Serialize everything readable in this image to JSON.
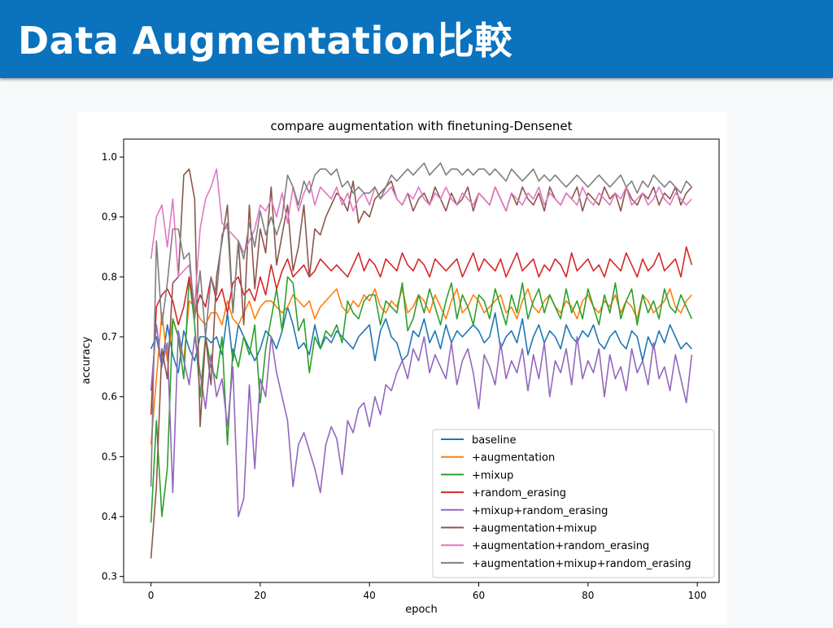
{
  "slide": {
    "title": "Data Augmentation比較"
  },
  "chart_data": {
    "type": "line",
    "title": "compare augmentation with finetuning-Densenet",
    "xlabel": "epoch",
    "ylabel": "accuracy",
    "xlim": [
      -5,
      104
    ],
    "ylim": [
      0.29,
      1.03
    ],
    "xticks": [
      0,
      20,
      40,
      60,
      80,
      100
    ],
    "xtick_labels": [
      "0",
      "20",
      "40",
      "60",
      "80",
      "100"
    ],
    "yticks": [
      0.3,
      0.4,
      0.5,
      0.6,
      0.7,
      0.8,
      0.9,
      1.0
    ],
    "ytick_labels": [
      "0.3",
      "0.4",
      "0.5",
      "0.6",
      "0.7",
      "0.8",
      "0.9",
      "1.0"
    ],
    "grid": false,
    "legend_position": "lower-right",
    "x": [
      0,
      1,
      2,
      3,
      4,
      5,
      6,
      7,
      8,
      9,
      10,
      11,
      12,
      13,
      14,
      15,
      16,
      17,
      18,
      19,
      20,
      21,
      22,
      23,
      24,
      25,
      26,
      27,
      28,
      29,
      30,
      31,
      32,
      33,
      34,
      35,
      36,
      37,
      38,
      39,
      40,
      41,
      42,
      43,
      44,
      45,
      46,
      47,
      48,
      49,
      50,
      51,
      52,
      53,
      54,
      55,
      56,
      57,
      58,
      59,
      60,
      61,
      62,
      63,
      64,
      65,
      66,
      67,
      68,
      69,
      70,
      71,
      72,
      73,
      74,
      75,
      76,
      77,
      78,
      79,
      80,
      81,
      82,
      83,
      84,
      85,
      86,
      87,
      88,
      89,
      90,
      91,
      92,
      93,
      94,
      95,
      96,
      97,
      98,
      99
    ],
    "series": [
      {
        "name": "baseline",
        "color": "#1f77b4",
        "values": [
          0.68,
          0.7,
          0.65,
          0.72,
          0.67,
          0.64,
          0.71,
          0.68,
          0.66,
          0.7,
          0.7,
          0.69,
          0.7,
          0.67,
          0.74,
          0.66,
          0.72,
          0.7,
          0.68,
          0.66,
          0.68,
          0.71,
          0.7,
          0.68,
          0.71,
          0.75,
          0.72,
          0.68,
          0.69,
          0.67,
          0.72,
          0.68,
          0.7,
          0.69,
          0.71,
          0.7,
          0.69,
          0.68,
          0.7,
          0.71,
          0.72,
          0.66,
          0.71,
          0.73,
          0.7,
          0.69,
          0.66,
          0.67,
          0.71,
          0.7,
          0.73,
          0.69,
          0.71,
          0.68,
          0.72,
          0.69,
          0.71,
          0.7,
          0.71,
          0.72,
          0.71,
          0.69,
          0.7,
          0.74,
          0.68,
          0.7,
          0.71,
          0.69,
          0.73,
          0.67,
          0.7,
          0.72,
          0.69,
          0.71,
          0.7,
          0.68,
          0.72,
          0.7,
          0.69,
          0.71,
          0.7,
          0.72,
          0.69,
          0.68,
          0.7,
          0.71,
          0.69,
          0.68,
          0.71,
          0.7,
          0.66,
          0.7,
          0.68,
          0.71,
          0.69,
          0.72,
          0.7,
          0.68,
          0.69,
          0.68
        ]
      },
      {
        "name": "+augmentation",
        "color": "#ff7f0e",
        "values": [
          0.52,
          0.63,
          0.74,
          0.66,
          0.73,
          0.7,
          0.66,
          0.76,
          0.75,
          0.73,
          0.72,
          0.74,
          0.74,
          0.72,
          0.76,
          0.73,
          0.72,
          0.74,
          0.76,
          0.73,
          0.75,
          0.76,
          0.76,
          0.75,
          0.74,
          0.75,
          0.77,
          0.76,
          0.75,
          0.76,
          0.73,
          0.75,
          0.76,
          0.77,
          0.78,
          0.75,
          0.74,
          0.76,
          0.75,
          0.77,
          0.76,
          0.78,
          0.75,
          0.74,
          0.76,
          0.75,
          0.78,
          0.74,
          0.75,
          0.77,
          0.76,
          0.74,
          0.77,
          0.75,
          0.73,
          0.76,
          0.78,
          0.74,
          0.75,
          0.77,
          0.76,
          0.74,
          0.75,
          0.76,
          0.77,
          0.74,
          0.75,
          0.73,
          0.76,
          0.78,
          0.75,
          0.74,
          0.76,
          0.77,
          0.75,
          0.74,
          0.76,
          0.75,
          0.73,
          0.76,
          0.77,
          0.75,
          0.74,
          0.76,
          0.75,
          0.77,
          0.74,
          0.76,
          0.75,
          0.73,
          0.77,
          0.76,
          0.74,
          0.75,
          0.76,
          0.78,
          0.75,
          0.74,
          0.76,
          0.77
        ]
      },
      {
        "name": "+mixup",
        "color": "#2ca02c",
        "values": [
          0.39,
          0.56,
          0.4,
          0.48,
          0.73,
          0.7,
          0.63,
          0.8,
          0.72,
          0.6,
          0.7,
          0.65,
          0.63,
          0.7,
          0.52,
          0.68,
          0.65,
          0.7,
          0.67,
          0.72,
          0.59,
          0.68,
          0.73,
          0.78,
          0.71,
          0.8,
          0.79,
          0.71,
          0.73,
          0.64,
          0.7,
          0.68,
          0.71,
          0.7,
          0.72,
          0.69,
          0.76,
          0.74,
          0.73,
          0.76,
          0.77,
          0.77,
          0.72,
          0.76,
          0.75,
          0.74,
          0.79,
          0.71,
          0.73,
          0.77,
          0.74,
          0.78,
          0.75,
          0.72,
          0.76,
          0.79,
          0.73,
          0.77,
          0.75,
          0.72,
          0.77,
          0.76,
          0.73,
          0.78,
          0.75,
          0.72,
          0.77,
          0.74,
          0.79,
          0.73,
          0.76,
          0.78,
          0.74,
          0.77,
          0.75,
          0.73,
          0.78,
          0.74,
          0.76,
          0.73,
          0.78,
          0.75,
          0.72,
          0.77,
          0.74,
          0.79,
          0.73,
          0.76,
          0.78,
          0.72,
          0.77,
          0.74,
          0.76,
          0.73,
          0.78,
          0.75,
          0.74,
          0.77,
          0.75,
          0.73
        ]
      },
      {
        "name": "+random_erasing",
        "color": "#d62728",
        "values": [
          0.57,
          0.75,
          0.77,
          0.78,
          0.76,
          0.72,
          0.75,
          0.8,
          0.74,
          0.77,
          0.75,
          0.8,
          0.76,
          0.78,
          0.74,
          0.79,
          0.8,
          0.77,
          0.78,
          0.76,
          0.8,
          0.77,
          0.82,
          0.78,
          0.81,
          0.83,
          0.8,
          0.81,
          0.82,
          0.8,
          0.81,
          0.83,
          0.82,
          0.81,
          0.82,
          0.81,
          0.8,
          0.82,
          0.84,
          0.81,
          0.83,
          0.82,
          0.8,
          0.83,
          0.82,
          0.81,
          0.84,
          0.82,
          0.81,
          0.83,
          0.82,
          0.8,
          0.83,
          0.82,
          0.81,
          0.82,
          0.83,
          0.8,
          0.82,
          0.84,
          0.81,
          0.83,
          0.82,
          0.81,
          0.83,
          0.8,
          0.82,
          0.84,
          0.81,
          0.82,
          0.83,
          0.8,
          0.82,
          0.81,
          0.83,
          0.82,
          0.8,
          0.84,
          0.81,
          0.82,
          0.83,
          0.81,
          0.82,
          0.8,
          0.83,
          0.82,
          0.81,
          0.84,
          0.82,
          0.8,
          0.83,
          0.81,
          0.82,
          0.84,
          0.81,
          0.82,
          0.83,
          0.8,
          0.85,
          0.82
        ]
      },
      {
        "name": "+mixup+random_erasing",
        "color": "#9467bd",
        "values": [
          0.61,
          0.72,
          0.65,
          0.69,
          0.44,
          0.71,
          0.66,
          0.62,
          0.7,
          0.64,
          0.58,
          0.67,
          0.6,
          0.63,
          0.55,
          0.65,
          0.4,
          0.43,
          0.62,
          0.48,
          0.63,
          0.6,
          0.7,
          0.64,
          0.6,
          0.56,
          0.45,
          0.52,
          0.54,
          0.51,
          0.48,
          0.44,
          0.52,
          0.55,
          0.53,
          0.47,
          0.56,
          0.54,
          0.58,
          0.59,
          0.55,
          0.6,
          0.57,
          0.62,
          0.61,
          0.64,
          0.66,
          0.63,
          0.68,
          0.66,
          0.7,
          0.64,
          0.67,
          0.65,
          0.63,
          0.69,
          0.62,
          0.66,
          0.68,
          0.64,
          0.58,
          0.67,
          0.65,
          0.62,
          0.69,
          0.63,
          0.66,
          0.64,
          0.68,
          0.61,
          0.67,
          0.63,
          0.69,
          0.6,
          0.66,
          0.64,
          0.68,
          0.62,
          0.7,
          0.63,
          0.66,
          0.64,
          0.68,
          0.6,
          0.67,
          0.63,
          0.65,
          0.61,
          0.68,
          0.64,
          0.66,
          0.62,
          0.69,
          0.63,
          0.65,
          0.61,
          0.67,
          0.63,
          0.59,
          0.67
        ]
      },
      {
        "name": "+augmentation+mixup",
        "color": "#8c564b",
        "values": [
          0.33,
          0.45,
          0.68,
          0.63,
          0.79,
          0.8,
          0.97,
          0.98,
          0.93,
          0.55,
          0.7,
          0.62,
          0.8,
          0.86,
          0.92,
          0.74,
          0.86,
          0.72,
          0.92,
          0.78,
          0.88,
          0.84,
          0.95,
          0.82,
          0.87,
          0.92,
          0.81,
          0.85,
          0.92,
          0.8,
          0.88,
          0.87,
          0.9,
          0.92,
          0.94,
          0.93,
          0.91,
          0.96,
          0.89,
          0.91,
          0.9,
          0.93,
          0.94,
          0.95,
          0.96,
          0.93,
          0.92,
          0.94,
          0.91,
          0.93,
          0.94,
          0.92,
          0.95,
          0.93,
          0.91,
          0.94,
          0.92,
          0.93,
          0.95,
          0.91,
          0.94,
          0.93,
          0.92,
          0.95,
          0.93,
          0.91,
          0.94,
          0.92,
          0.95,
          0.93,
          0.92,
          0.94,
          0.91,
          0.95,
          0.93,
          0.92,
          0.94,
          0.93,
          0.95,
          0.91,
          0.94,
          0.93,
          0.92,
          0.95,
          0.93,
          0.94,
          0.91,
          0.95,
          0.93,
          0.92,
          0.94,
          0.93,
          0.95,
          0.92,
          0.94,
          0.93,
          0.95,
          0.92,
          0.94,
          0.95
        ]
      },
      {
        "name": "+augmentation+random_erasing",
        "color": "#e377c2",
        "values": [
          0.83,
          0.9,
          0.92,
          0.85,
          0.93,
          0.8,
          0.81,
          0.82,
          0.75,
          0.88,
          0.93,
          0.95,
          0.98,
          0.89,
          0.88,
          0.87,
          0.86,
          0.84,
          0.86,
          0.88,
          0.92,
          0.91,
          0.93,
          0.9,
          0.94,
          0.89,
          0.95,
          0.91,
          0.94,
          0.96,
          0.92,
          0.95,
          0.94,
          0.93,
          0.95,
          0.92,
          0.94,
          0.91,
          0.93,
          0.94,
          0.92,
          0.95,
          0.93,
          0.94,
          0.95,
          0.93,
          0.92,
          0.94,
          0.93,
          0.95,
          0.93,
          0.92,
          0.94,
          0.93,
          0.95,
          0.93,
          0.92,
          0.94,
          0.93,
          0.92,
          0.94,
          0.93,
          0.92,
          0.95,
          0.93,
          0.91,
          0.94,
          0.93,
          0.92,
          0.94,
          0.93,
          0.95,
          0.92,
          0.94,
          0.93,
          0.92,
          0.94,
          0.93,
          0.92,
          0.95,
          0.93,
          0.92,
          0.94,
          0.93,
          0.92,
          0.94,
          0.93,
          0.95,
          0.92,
          0.93,
          0.94,
          0.92,
          0.93,
          0.95,
          0.93,
          0.92,
          0.94,
          0.93,
          0.92,
          0.93
        ]
      },
      {
        "name": "+augmentation+mixup+random_erasing",
        "color": "#7f7f7f",
        "values": [
          0.45,
          0.86,
          0.72,
          0.79,
          0.88,
          0.88,
          0.83,
          0.84,
          0.73,
          0.81,
          0.7,
          0.8,
          0.77,
          0.87,
          0.89,
          0.74,
          0.86,
          0.83,
          0.89,
          0.85,
          0.91,
          0.87,
          0.9,
          0.87,
          0.9,
          0.97,
          0.95,
          0.92,
          0.96,
          0.94,
          0.97,
          0.98,
          0.98,
          0.97,
          0.98,
          0.95,
          0.96,
          0.94,
          0.95,
          0.94,
          0.94,
          0.95,
          0.93,
          0.95,
          0.97,
          0.96,
          0.97,
          0.98,
          0.97,
          0.98,
          0.99,
          0.97,
          0.98,
          0.99,
          0.97,
          0.98,
          0.98,
          0.97,
          0.98,
          0.97,
          0.98,
          0.98,
          0.97,
          0.98,
          0.97,
          0.96,
          0.98,
          0.97,
          0.96,
          0.97,
          0.98,
          0.96,
          0.97,
          0.96,
          0.97,
          0.96,
          0.95,
          0.96,
          0.97,
          0.96,
          0.95,
          0.96,
          0.97,
          0.96,
          0.95,
          0.96,
          0.97,
          0.95,
          0.96,
          0.94,
          0.96,
          0.95,
          0.97,
          0.96,
          0.95,
          0.96,
          0.95,
          0.94,
          0.96,
          0.95
        ]
      }
    ]
  }
}
